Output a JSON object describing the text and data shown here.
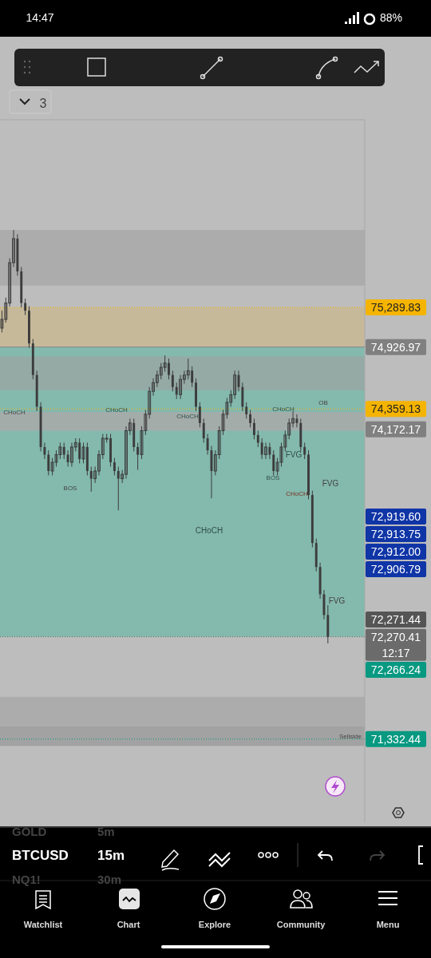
{
  "chart_data": {
    "type": "candlestick",
    "categories": [
      null,
      null,
      null,
      null,
      null,
      null,
      null,
      null,
      null,
      null,
      null,
      null,
      null,
      null,
      null,
      null,
      null,
      null,
      null,
      null,
      null,
      null,
      null,
      null,
      null,
      null,
      null,
      null,
      null,
      null,
      null,
      null,
      null,
      null,
      null,
      null,
      null,
      null,
      null,
      null,
      null,
      null,
      null,
      null,
      null,
      null,
      null,
      null,
      null,
      null,
      null,
      null,
      null,
      null,
      null,
      null,
      null,
      null,
      null,
      null,
      null,
      null,
      null,
      null,
      null,
      null,
      null,
      null,
      null,
      null,
      null,
      null,
      null,
      null,
      null,
      null,
      null,
      null,
      null,
      null,
      null,
      null,
      null,
      null,
      null,
      null,
      null,
      null,
      null,
      null,
      null,
      null,
      null,
      null
    ],
    "series": [
      {
        "color": "#3c3c3c",
        "ohlc": [
          [
            75100,
            75260,
            75060,
            75180
          ],
          [
            75180,
            75380,
            75150,
            75330
          ],
          [
            75330,
            75740,
            75300,
            75700
          ],
          [
            75700,
            76000,
            75660,
            75920
          ],
          [
            75920,
            75960,
            75580,
            75620
          ],
          [
            75620,
            75660,
            75290,
            75330
          ],
          [
            75330,
            75370,
            75220,
            75260
          ],
          [
            75260,
            75300,
            74920,
            74960
          ],
          [
            74960,
            75000,
            74630,
            74670
          ],
          [
            74670,
            74710,
            74340,
            74380
          ],
          [
            74380,
            74420,
            73970,
            74010
          ],
          [
            74010,
            74050,
            73900,
            73940
          ],
          [
            73940,
            73980,
            73750,
            73790
          ],
          [
            73790,
            73910,
            73750,
            73870
          ],
          [
            73870,
            73980,
            73830,
            73940
          ],
          [
            73940,
            74050,
            73900,
            74010
          ],
          [
            74010,
            74050,
            73900,
            73940
          ],
          [
            73940,
            73980,
            73830,
            73870
          ],
          [
            73870,
            74050,
            73830,
            74010
          ],
          [
            74010,
            74090,
            73970,
            74050
          ],
          [
            74050,
            74090,
            73860,
            73900
          ],
          [
            73900,
            74050,
            73860,
            74010
          ],
          [
            74010,
            74050,
            73750,
            73790
          ],
          [
            73790,
            73830,
            73600,
            73720
          ],
          [
            73720,
            73830,
            73680,
            73790
          ],
          [
            73790,
            73980,
            73750,
            73940
          ],
          [
            73940,
            74130,
            73900,
            74090
          ],
          [
            74090,
            74130,
            74050,
            74090
          ],
          [
            74090,
            74130,
            73830,
            73870
          ],
          [
            73870,
            73910,
            73750,
            73790
          ],
          [
            73790,
            73830,
            73430,
            73720
          ],
          [
            73720,
            73800,
            73680,
            73760
          ],
          [
            73760,
            74200,
            73720,
            74160
          ],
          [
            74160,
            74270,
            74120,
            74230
          ],
          [
            74230,
            74270,
            73970,
            74010
          ],
          [
            74010,
            74050,
            73800,
            73940
          ],
          [
            73940,
            74200,
            73900,
            74160
          ],
          [
            74160,
            74350,
            74120,
            74310
          ],
          [
            74310,
            74560,
            74270,
            74520
          ],
          [
            74520,
            74640,
            74480,
            74600
          ],
          [
            74600,
            74710,
            74560,
            74670
          ],
          [
            74670,
            74780,
            74630,
            74740
          ],
          [
            74740,
            74850,
            74700,
            74780
          ],
          [
            74780,
            74820,
            74630,
            74670
          ],
          [
            74670,
            74710,
            74520,
            74560
          ],
          [
            74560,
            74600,
            74450,
            74490
          ],
          [
            74490,
            74670,
            74450,
            74630
          ],
          [
            74630,
            74710,
            74590,
            74670
          ],
          [
            74670,
            74820,
            74630,
            74710
          ],
          [
            74710,
            74750,
            74560,
            74600
          ],
          [
            74600,
            74640,
            74340,
            74380
          ],
          [
            74380,
            74420,
            74190,
            74230
          ],
          [
            74230,
            74270,
            74050,
            74090
          ],
          [
            74090,
            74130,
            73940,
            73980
          ],
          [
            73980,
            74020,
            73540,
            73790
          ],
          [
            73790,
            73980,
            73750,
            73940
          ],
          [
            73940,
            74200,
            73900,
            74160
          ],
          [
            74160,
            74350,
            74120,
            74310
          ],
          [
            74310,
            74460,
            74270,
            74420
          ],
          [
            74420,
            74530,
            74380,
            74490
          ],
          [
            74490,
            74710,
            74450,
            74670
          ],
          [
            74670,
            74710,
            74520,
            74560
          ],
          [
            74560,
            74600,
            74340,
            74380
          ],
          [
            74380,
            74420,
            74270,
            74310
          ],
          [
            74310,
            74350,
            74190,
            74230
          ],
          [
            74230,
            74270,
            74080,
            74120
          ],
          [
            74120,
            74160,
            74010,
            74050
          ],
          [
            74050,
            74090,
            73900,
            73940
          ],
          [
            73940,
            74050,
            73900,
            74010
          ],
          [
            74010,
            74050,
            73900,
            73940
          ],
          [
            73940,
            73980,
            73750,
            73790
          ],
          [
            73790,
            73910,
            73750,
            73870
          ],
          [
            73870,
            74050,
            73830,
            74010
          ],
          [
            74010,
            74160,
            73970,
            74120
          ],
          [
            74120,
            74270,
            74080,
            74230
          ],
          [
            74230,
            74340,
            74190,
            74270
          ],
          [
            74270,
            74310,
            74190,
            74230
          ],
          [
            74230,
            74270,
            73970,
            74010
          ],
          [
            74010,
            74050,
            73900,
            73940
          ],
          [
            73940,
            73980,
            73530,
            73570
          ],
          [
            73570,
            73610,
            73090,
            73130
          ],
          [
            73130,
            73170,
            72870,
            72910
          ],
          [
            72910,
            72950,
            72620,
            72660
          ],
          [
            72660,
            72700,
            72430,
            72470
          ],
          [
            72470,
            72560,
            72210,
            72270
          ],
          null,
          null,
          null,
          null,
          null,
          null,
          null,
          null,
          null
        ]
      }
    ],
    "ylim": [
      70570,
      77010
    ],
    "yticks": [
      {
        "value": 74926.97,
        "label": "74,926.97"
      },
      {
        "value": 74172.17,
        "label": "74,172.17"
      }
    ],
    "ref_lines": [
      {
        "axis": "y",
        "value": 75289.83,
        "label": "75,289.83",
        "color": "#f5b400",
        "line_style": "dotted"
      },
      {
        "axis": "y",
        "value": 74926.97,
        "label": null,
        "color": "#8a8a8a",
        "line_style": "solid"
      },
      {
        "axis": "y",
        "value": 74359.13,
        "label": "74,359.13",
        "color": "#f5b400",
        "line_style": "dotted"
      },
      {
        "axis": "y",
        "value": 72270.41,
        "label": "72,270.41\n12:17",
        "color": "#6b6b6b",
        "line_style": "dotted"
      },
      {
        "axis": "y",
        "value": 71332.44,
        "label": "71,332.44",
        "color": "#089981",
        "line_style": "dotted"
      }
    ],
    "bands": [
      {
        "axis": "y",
        "from": 75490,
        "to": 76000,
        "color": "#a9a9a9"
      },
      {
        "axis": "y",
        "from": 74926.97,
        "to": 75289.83,
        "color": "#c8b894"
      },
      {
        "axis": "y",
        "from": 72270.41,
        "to": 74926.97,
        "color": "#7ab8aa"
      },
      {
        "axis": "y",
        "from": 74530,
        "to": 74840,
        "color": "#98a7a3"
      },
      {
        "axis": "y",
        "from": 74160,
        "to": 74330,
        "color": "#a9a9a9"
      },
      {
        "axis": "y",
        "from": 71450,
        "to": 71720,
        "color": "#a9a9a9"
      },
      {
        "axis": "y",
        "from": 71270,
        "to": 71450,
        "color": "#9e9e9e",
        "label": "Sellside"
      }
    ],
    "annotations": [
      "14:47",
      "88%",
      "3",
      "CHoCH",
      "BOS",
      "CHoCH",
      "CHoCH",
      "CHoCH",
      "OB",
      "FVG",
      "BOS",
      "FVG",
      "CHoCH",
      "CHoCH",
      "FVG",
      "72,919.60",
      "72,913.75",
      "72,912.00",
      "72,906.79",
      "72,271.44",
      "72,266.24",
      "BTCUSD",
      "15m",
      "GOLD",
      "5m",
      "NQ1!",
      "30m",
      "Watchlist",
      "Chart",
      "Explore",
      "Community",
      "Menu"
    ]
  }
}
